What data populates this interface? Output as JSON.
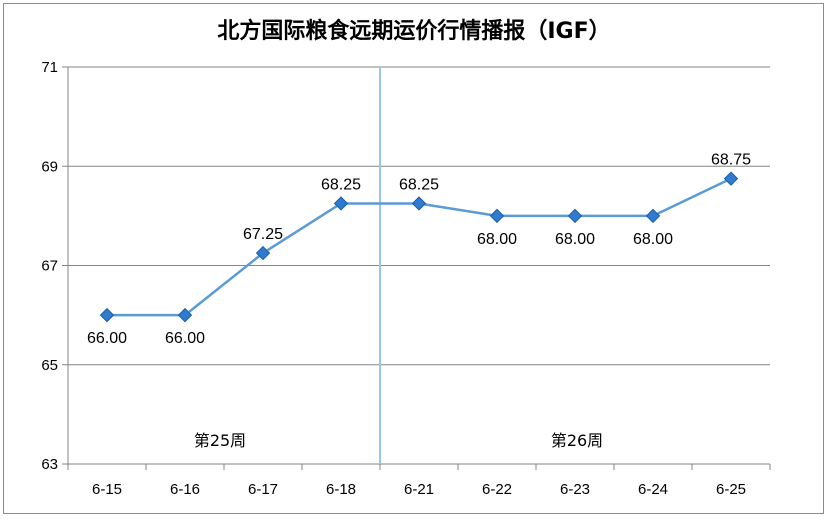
{
  "chart_data": {
    "type": "line",
    "title": "北方国际粮食远期运价行情播报（IGF）",
    "xlabel": "",
    "ylabel": "",
    "categories": [
      "6-15",
      "6-16",
      "6-17",
      "6-18",
      "6-21",
      "6-22",
      "6-23",
      "6-24",
      "6-25"
    ],
    "series": [
      {
        "values": [
          66.0,
          66.0,
          67.25,
          68.25,
          68.25,
          68.0,
          68.0,
          68.0,
          68.75
        ],
        "labels": [
          "66.00",
          "66.00",
          "67.25",
          "68.25",
          "68.25",
          "68.00",
          "68.00",
          "68.00",
          "68.75"
        ],
        "color": "#5b9bd5",
        "marker": "diamond",
        "marker_color": "#2e7bd0"
      }
    ],
    "ylim": [
      63,
      71
    ],
    "yticks": [
      "63",
      "65",
      "67",
      "69",
      "71"
    ],
    "grid": true,
    "legend": "none",
    "week_divider_after_index": 3,
    "week_labels": [
      "第25周",
      "第26周"
    ],
    "gridline_color": "#868686",
    "divider_color": "#9dc3e6"
  }
}
